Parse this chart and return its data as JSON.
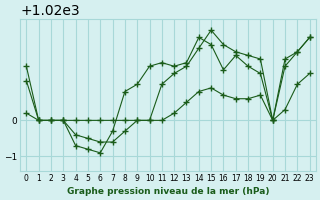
{
  "title": "Graphe pression niveau de la mer (hPa)",
  "bg_color": "#d6f0f0",
  "grid_color": "#a8d8d8",
  "line_color": "#1a5c1a",
  "x_labels": [
    "0",
    "1",
    "2",
    "3",
    "4",
    "5",
    "6",
    "7",
    "8",
    "9",
    "10",
    "11",
    "12",
    "13",
    "14",
    "15",
    "16",
    "17",
    "18",
    "19",
    "20",
    "21",
    "22",
    "23"
  ],
  "ylim": [
    1018.6,
    1022.8
  ],
  "yticks": [
    1019,
    1020
  ],
  "series": [
    [
      1020.2,
      1020.0,
      1020.0,
      1020.0,
      1019.6,
      1019.5,
      1019.4,
      1019.4,
      1019.7,
      1020.0,
      1020.0,
      1020.0,
      1020.2,
      1020.5,
      1020.8,
      1020.9,
      1020.7,
      1020.6,
      1020.6,
      1020.7,
      1020.0,
      1020.3,
      1021.0,
      1021.3
    ],
    [
      1021.1,
      1020.0,
      1020.0,
      1020.0,
      1019.3,
      1019.2,
      1019.1,
      1019.7,
      1020.8,
      1021.0,
      1021.5,
      1021.6,
      1021.5,
      1021.6,
      1022.3,
      1022.1,
      1021.4,
      1021.8,
      1021.5,
      1021.3,
      1020.0,
      1021.5,
      1021.9,
      1022.3
    ],
    [
      1021.5,
      1020.0,
      1020.0,
      1020.0,
      1020.0,
      1020.0,
      1020.0,
      1020.0,
      1020.0,
      1020.0,
      1020.0,
      1021.0,
      1021.3,
      1021.5,
      1022.0,
      1022.5,
      1022.1,
      1021.9,
      1021.8,
      1021.7,
      1020.0,
      1021.7,
      1021.9,
      1022.3
    ]
  ]
}
